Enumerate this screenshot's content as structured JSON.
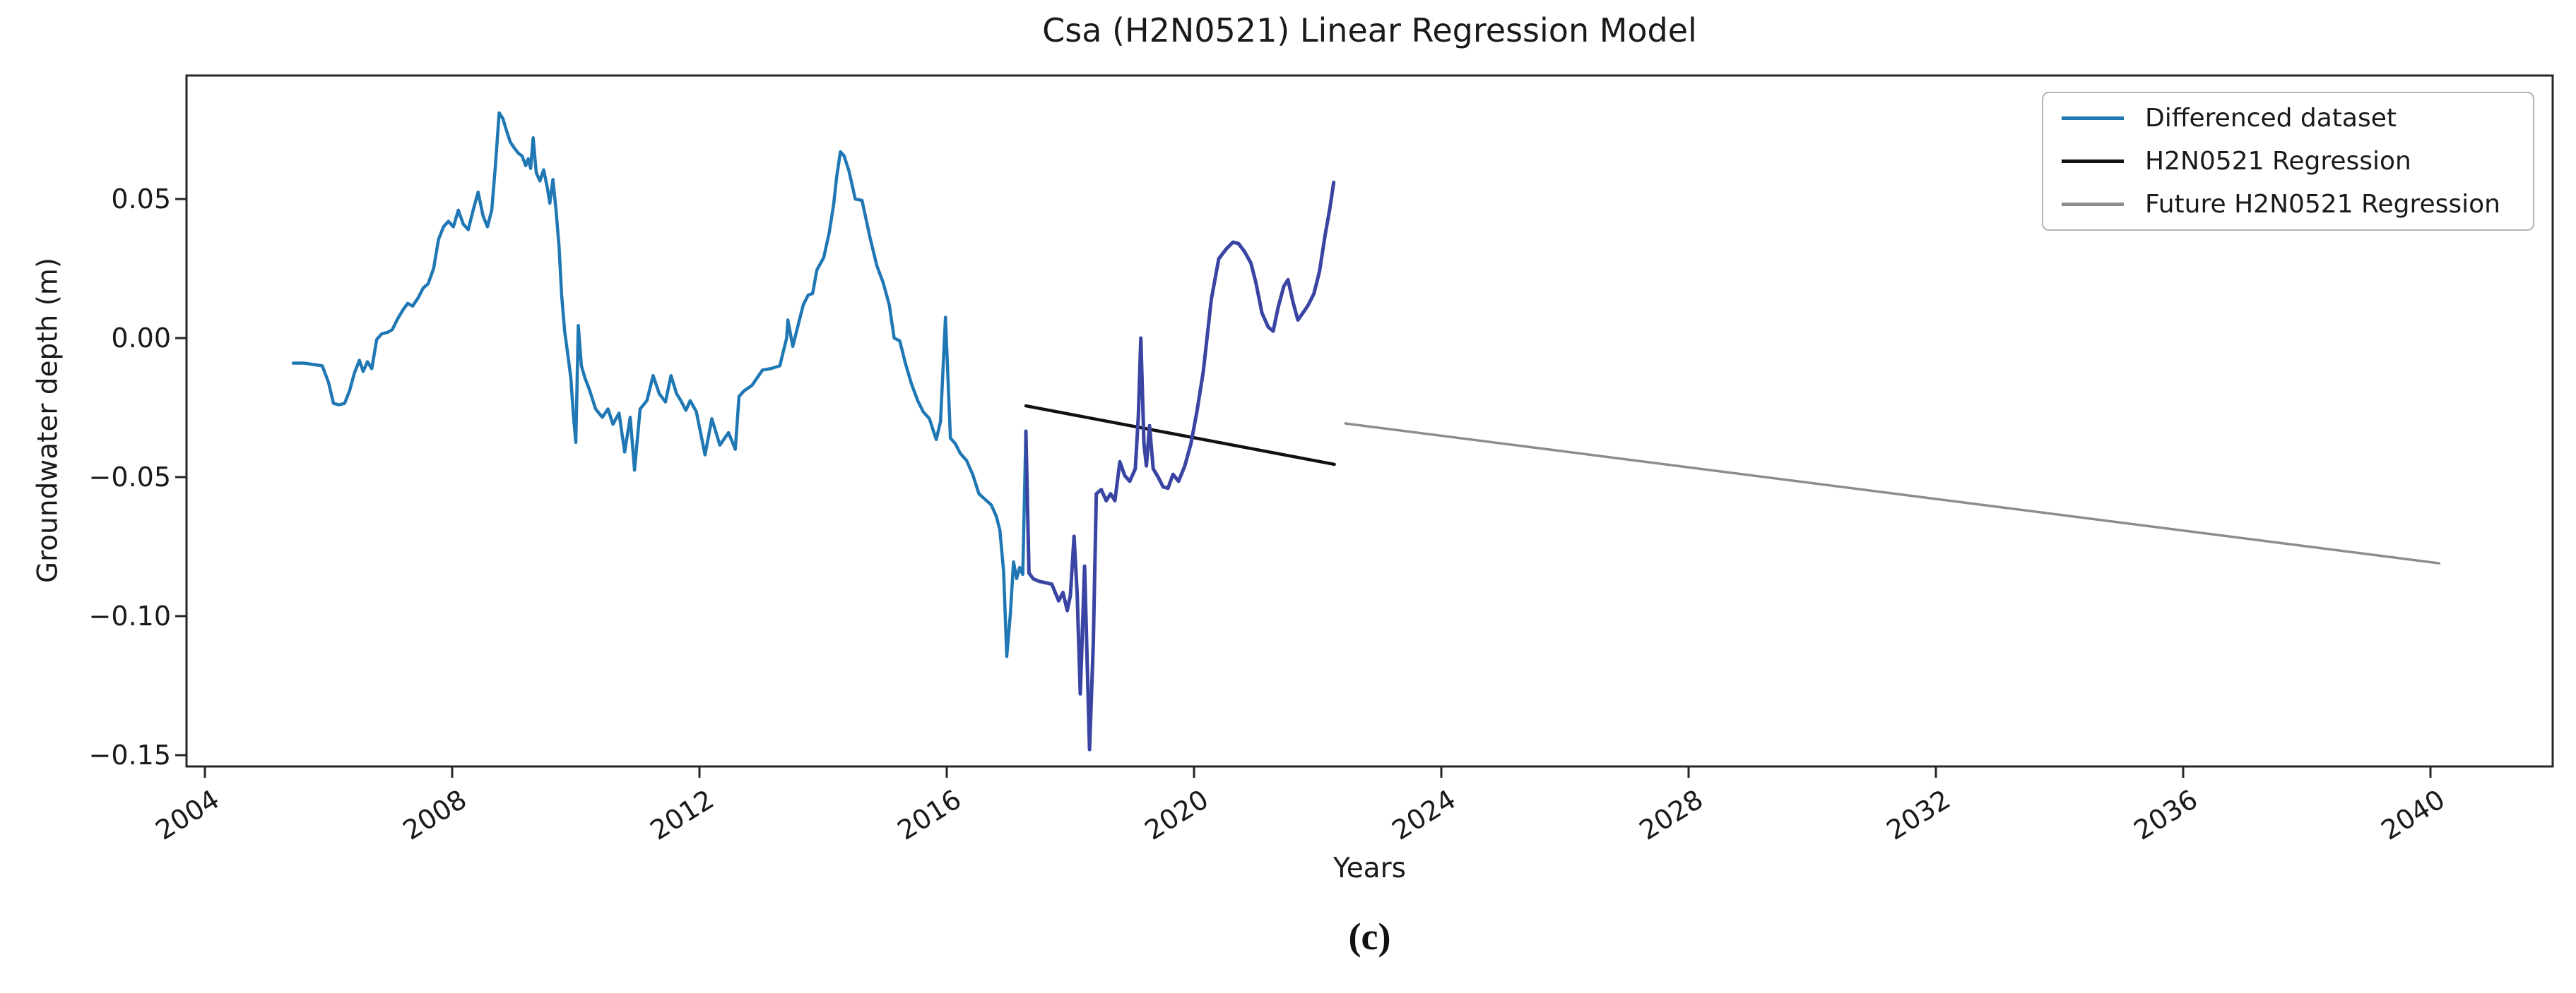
{
  "figure": {
    "caption": "(c)"
  },
  "chart_data": {
    "type": "line",
    "title": "Csa (H2N0521) Linear Regression Model",
    "xlabel": "Years",
    "ylabel": "Groundwater depth (m)",
    "xlim": [
      2003.703,
      2041.977
    ],
    "ylim": [
      -0.15406,
      0.09442
    ],
    "grid": false,
    "xticks": [
      2004,
      2008,
      2012,
      2016,
      2020,
      2024,
      2028,
      2032,
      2036,
      2040
    ],
    "xtick_labels": [
      "2004",
      "2008",
      "2012",
      "2016",
      "2020",
      "2024",
      "2028",
      "2032",
      "2036",
      "2040"
    ],
    "yticks": [
      0.05,
      0.0,
      -0.05,
      -0.1,
      -0.15
    ],
    "ytick_labels": [
      "0.05",
      "0.00",
      "−0.05",
      "−0.10",
      "−0.15"
    ],
    "legend": {
      "position": "upper right",
      "entries": [
        {
          "label": "Differenced dataset",
          "color": "#1f77b4"
        },
        {
          "label": "H2N0521 Regression",
          "color": "#111111"
        },
        {
          "label": "Future H2N0521 Regression",
          "color": "#8c8c8c"
        }
      ]
    },
    "series": [
      {
        "name": "Differenced dataset (observed segment)",
        "color": "#1f77b4",
        "line_width": 4.5,
        "points": [
          [
            2005.43,
            -0.009
          ],
          [
            2005.6,
            -0.009
          ],
          [
            2005.75,
            -0.0095
          ],
          [
            2005.9,
            -0.01
          ],
          [
            2006.0,
            -0.016
          ],
          [
            2006.08,
            -0.0235
          ],
          [
            2006.17,
            -0.024
          ],
          [
            2006.26,
            -0.0235
          ],
          [
            2006.34,
            -0.019
          ],
          [
            2006.42,
            -0.0125
          ],
          [
            2006.5,
            -0.008
          ],
          [
            2006.56,
            -0.012
          ],
          [
            2006.63,
            -0.0085
          ],
          [
            2006.7,
            -0.011
          ],
          [
            2006.78,
            -0.0005
          ],
          [
            2006.86,
            0.0015
          ],
          [
            2006.95,
            0.002
          ],
          [
            2007.03,
            0.003
          ],
          [
            2007.12,
            0.007
          ],
          [
            2007.2,
            0.01
          ],
          [
            2007.28,
            0.0125
          ],
          [
            2007.36,
            0.0115
          ],
          [
            2007.45,
            0.0145
          ],
          [
            2007.53,
            0.018
          ],
          [
            2007.61,
            0.0195
          ],
          [
            2007.7,
            0.025
          ],
          [
            2007.78,
            0.0355
          ],
          [
            2007.86,
            0.04
          ],
          [
            2007.94,
            0.042
          ],
          [
            2008.02,
            0.04
          ],
          [
            2008.1,
            0.046
          ],
          [
            2008.18,
            0.041
          ],
          [
            2008.26,
            0.039
          ],
          [
            2008.34,
            0.046
          ],
          [
            2008.42,
            0.0525
          ],
          [
            2008.5,
            0.044
          ],
          [
            2008.57,
            0.04
          ],
          [
            2008.64,
            0.046
          ],
          [
            2008.7,
            0.062
          ],
          [
            2008.76,
            0.081
          ],
          [
            2008.82,
            0.079
          ],
          [
            2008.88,
            0.0745
          ],
          [
            2008.94,
            0.0705
          ],
          [
            2009.0,
            0.0685
          ],
          [
            2009.07,
            0.0665
          ],
          [
            2009.13,
            0.0655
          ],
          [
            2009.19,
            0.062
          ],
          [
            2009.23,
            0.0645
          ],
          [
            2009.27,
            0.061
          ],
          [
            2009.31,
            0.072
          ],
          [
            2009.36,
            0.0595
          ],
          [
            2009.42,
            0.0565
          ],
          [
            2009.48,
            0.0605
          ],
          [
            2009.54,
            0.054
          ],
          [
            2009.58,
            0.0485
          ],
          [
            2009.63,
            0.057
          ],
          [
            2009.68,
            0.046
          ],
          [
            2009.73,
            0.0325
          ],
          [
            2009.77,
            0.0155
          ],
          [
            2009.82,
            0.0025
          ],
          [
            2009.88,
            -0.0075
          ],
          [
            2009.92,
            -0.0145
          ],
          [
            2009.96,
            -0.0275
          ],
          [
            2010.0,
            -0.0375
          ],
          [
            2010.04,
            0.0045
          ],
          [
            2010.09,
            -0.01
          ],
          [
            2010.15,
            -0.0145
          ],
          [
            2010.22,
            -0.0185
          ],
          [
            2010.32,
            -0.0255
          ],
          [
            2010.43,
            -0.0285
          ],
          [
            2010.52,
            -0.0255
          ],
          [
            2010.6,
            -0.031
          ],
          [
            2010.7,
            -0.027
          ],
          [
            2010.79,
            -0.041
          ],
          [
            2010.88,
            -0.0285
          ],
          [
            2010.95,
            -0.0475
          ],
          [
            2011.04,
            -0.0255
          ],
          [
            2011.15,
            -0.0225
          ],
          [
            2011.25,
            -0.0135
          ],
          [
            2011.35,
            -0.02
          ],
          [
            2011.45,
            -0.023
          ],
          [
            2011.54,
            -0.0135
          ],
          [
            2011.63,
            -0.02
          ],
          [
            2011.7,
            -0.0225
          ],
          [
            2011.78,
            -0.026
          ],
          [
            2011.85,
            -0.0225
          ],
          [
            2011.95,
            -0.0265
          ],
          [
            2012.09,
            -0.042
          ],
          [
            2012.2,
            -0.029
          ],
          [
            2012.33,
            -0.0385
          ],
          [
            2012.47,
            -0.034
          ],
          [
            2012.58,
            -0.04
          ],
          [
            2012.64,
            -0.021
          ],
          [
            2012.72,
            -0.019
          ],
          [
            2012.85,
            -0.017
          ],
          [
            2013.02,
            -0.0115
          ],
          [
            2013.15,
            -0.011
          ],
          [
            2013.3,
            -0.01
          ],
          [
            2013.41,
            0.0
          ],
          [
            2013.43,
            0.0065
          ],
          [
            2013.51,
            -0.003
          ],
          [
            2013.6,
            0.005
          ],
          [
            2013.68,
            0.012
          ],
          [
            2013.76,
            0.0155
          ],
          [
            2013.83,
            0.016
          ],
          [
            2013.9,
            0.0245
          ],
          [
            2014.01,
            0.029
          ],
          [
            2014.1,
            0.038
          ],
          [
            2014.17,
            0.048
          ],
          [
            2014.22,
            0.058
          ],
          [
            2014.28,
            0.067
          ],
          [
            2014.34,
            0.0655
          ],
          [
            2014.42,
            0.06
          ],
          [
            2014.52,
            0.05
          ],
          [
            2014.63,
            0.0495
          ],
          [
            2014.76,
            0.036
          ],
          [
            2014.87,
            0.026
          ],
          [
            2014.97,
            0.02
          ],
          [
            2015.07,
            0.012
          ],
          [
            2015.15,
            0.0
          ],
          [
            2015.24,
            -0.001
          ],
          [
            2015.33,
            -0.009
          ],
          [
            2015.43,
            -0.0165
          ],
          [
            2015.53,
            -0.0225
          ],
          [
            2015.62,
            -0.0265
          ],
          [
            2015.72,
            -0.029
          ],
          [
            2015.83,
            -0.0365
          ],
          [
            2015.9,
            -0.03
          ],
          [
            2015.98,
            0.0075
          ],
          [
            2016.06,
            -0.036
          ],
          [
            2016.14,
            -0.038
          ],
          [
            2016.22,
            -0.0415
          ],
          [
            2016.32,
            -0.044
          ],
          [
            2016.42,
            -0.049
          ],
          [
            2016.52,
            -0.056
          ],
          [
            2016.62,
            -0.058
          ],
          [
            2016.72,
            -0.06
          ],
          [
            2016.8,
            -0.064
          ],
          [
            2016.86,
            -0.069
          ],
          [
            2016.92,
            -0.084
          ],
          [
            2016.97,
            -0.1145
          ],
          [
            2017.03,
            -0.099
          ],
          [
            2017.08,
            -0.0805
          ],
          [
            2017.13,
            -0.0865
          ],
          [
            2017.18,
            -0.0825
          ],
          [
            2017.23,
            -0.085
          ],
          [
            2017.28,
            -0.0335
          ]
        ]
      },
      {
        "name": "Differenced dataset (recent segment)",
        "color": "#3944a3",
        "line_width": 5,
        "points": [
          [
            2017.28,
            -0.0335
          ],
          [
            2017.33,
            -0.0845
          ],
          [
            2017.4,
            -0.0866
          ],
          [
            2017.5,
            -0.0875
          ],
          [
            2017.6,
            -0.088
          ],
          [
            2017.7,
            -0.0885
          ],
          [
            2017.81,
            -0.0945
          ],
          [
            2017.88,
            -0.0915
          ],
          [
            2017.95,
            -0.098
          ],
          [
            2018.0,
            -0.0925
          ],
          [
            2018.06,
            -0.0713
          ],
          [
            2018.11,
            -0.092
          ],
          [
            2018.16,
            -0.128
          ],
          [
            2018.23,
            -0.082
          ],
          [
            2018.31,
            -0.148
          ],
          [
            2018.37,
            -0.11
          ],
          [
            2018.42,
            -0.056
          ],
          [
            2018.5,
            -0.0545
          ],
          [
            2018.58,
            -0.0585
          ],
          [
            2018.65,
            -0.056
          ],
          [
            2018.72,
            -0.0585
          ],
          [
            2018.8,
            -0.0445
          ],
          [
            2018.88,
            -0.0495
          ],
          [
            2018.96,
            -0.0515
          ],
          [
            2019.05,
            -0.047
          ],
          [
            2019.1,
            -0.028
          ],
          [
            2019.14,
            0.0
          ],
          [
            2019.19,
            -0.038
          ],
          [
            2019.23,
            -0.046
          ],
          [
            2019.28,
            -0.0315
          ],
          [
            2019.34,
            -0.047
          ],
          [
            2019.42,
            -0.05
          ],
          [
            2019.5,
            -0.0535
          ],
          [
            2019.58,
            -0.054
          ],
          [
            2019.66,
            -0.049
          ],
          [
            2019.75,
            -0.0515
          ],
          [
            2019.85,
            -0.046
          ],
          [
            2019.95,
            -0.038
          ],
          [
            2020.05,
            -0.026
          ],
          [
            2020.15,
            -0.012
          ],
          [
            2020.28,
            0.014
          ],
          [
            2020.4,
            0.0285
          ],
          [
            2020.52,
            0.032
          ],
          [
            2020.63,
            0.0345
          ],
          [
            2020.72,
            0.034
          ],
          [
            2020.82,
            0.031
          ],
          [
            2020.92,
            0.027
          ],
          [
            2021.0,
            0.02
          ],
          [
            2021.1,
            0.009
          ],
          [
            2021.2,
            0.004
          ],
          [
            2021.28,
            0.0025
          ],
          [
            2021.36,
            0.011
          ],
          [
            2021.45,
            0.0185
          ],
          [
            2021.52,
            0.021
          ],
          [
            2021.6,
            0.013
          ],
          [
            2021.68,
            0.0065
          ],
          [
            2021.76,
            0.009
          ],
          [
            2021.85,
            0.012
          ],
          [
            2021.94,
            0.016
          ],
          [
            2022.03,
            0.024
          ],
          [
            2022.12,
            0.037
          ],
          [
            2022.2,
            0.047
          ],
          [
            2022.26,
            0.056
          ]
        ]
      },
      {
        "name": "H2N0521 Regression",
        "color": "#111111",
        "line_width": 4.5,
        "points": [
          [
            2017.28,
            -0.0244
          ],
          [
            2022.27,
            -0.0454
          ]
        ]
      },
      {
        "name": "Future H2N0521 Regression",
        "color": "#8c8c8c",
        "line_width": 3.5,
        "points": [
          [
            2022.45,
            -0.0307
          ],
          [
            2040.14,
            -0.081
          ]
        ]
      }
    ]
  }
}
